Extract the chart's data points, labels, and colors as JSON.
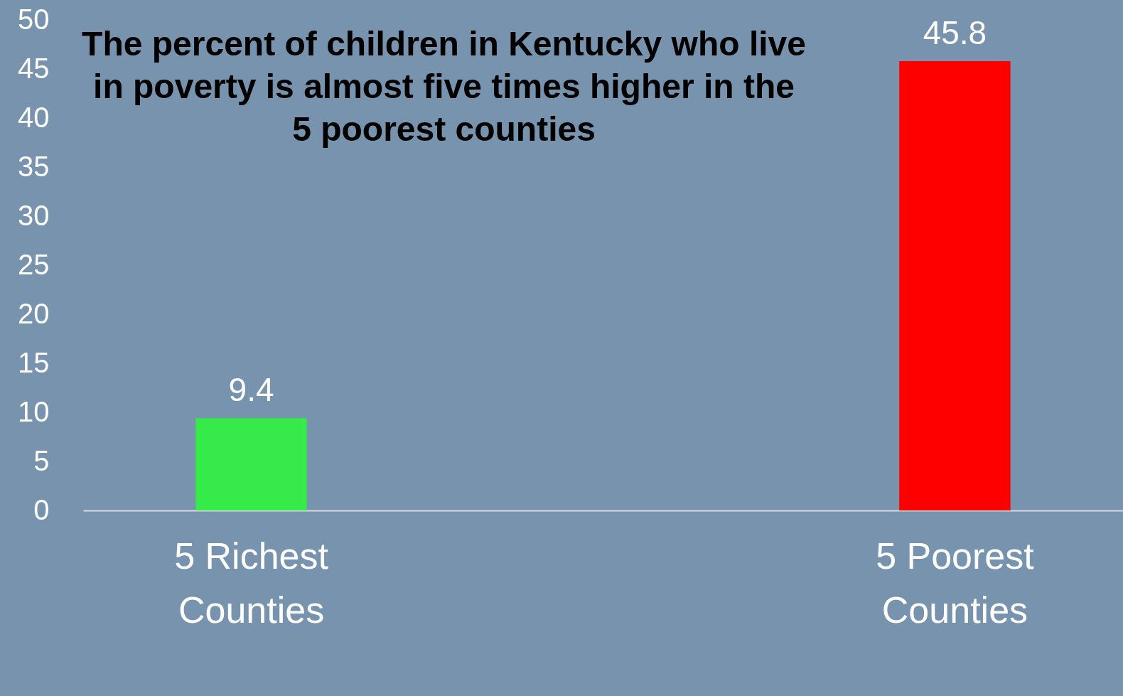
{
  "chart_data": {
    "type": "bar",
    "title": "The percent of  children in Kentucky who live in poverty is almost five times higher in the 5 poorest counties",
    "categories": [
      "5 Richest Counties",
      "5 Poorest Counties"
    ],
    "values": [
      9.4,
      45.8
    ],
    "colors": [
      "#36ea4a",
      "#ff0000"
    ],
    "ylim": [
      0,
      50
    ],
    "yticks": [
      0,
      5,
      10,
      15,
      20,
      25,
      30,
      35,
      40,
      45,
      50
    ],
    "data_labels": true,
    "grid": false
  }
}
